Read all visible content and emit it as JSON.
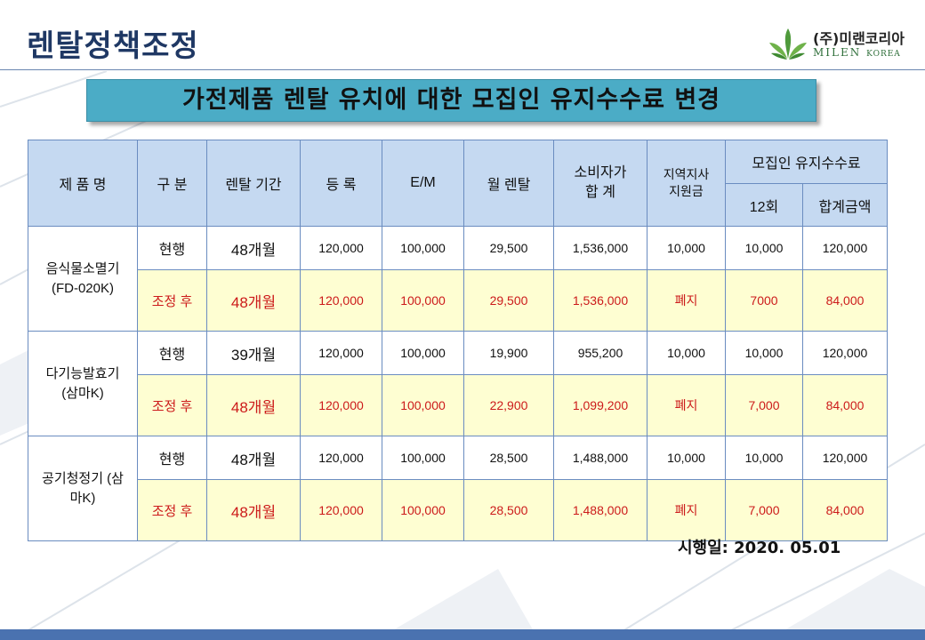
{
  "page_title": "렌탈정책조정",
  "logo": {
    "kr": "(주)미랜코리아",
    "en_main": "MILEN",
    "en_sub": "KOREA"
  },
  "banner": "가전제품 렌탈 유치에 대한 모집인 유지수수료 변경",
  "table": {
    "headers": {
      "product": "제 품 명",
      "kind": "구 분",
      "period": "렌탈 기간",
      "register": "등  록",
      "em": "E/M",
      "monthly": "월 렌탈",
      "total": "소비자가 합 계",
      "regional": "지역지사 지원금",
      "commission": "모집인 유지수수료",
      "count12": "12회",
      "sum": "합계금액"
    },
    "products": [
      {
        "name": "음식물소멸기 (FD-020K)",
        "rows": [
          [
            "현행",
            "48개월",
            "120,000",
            "100,000",
            "29,500",
            "1,536,000",
            "10,000",
            "10,000",
            "120,000"
          ],
          [
            "조정 후",
            "48개월",
            "120,000",
            "100,000",
            "29,500",
            "1,536,000",
            "폐지",
            "7000",
            "84,000"
          ]
        ]
      },
      {
        "name": "다기능발효기 (삼마K)",
        "rows": [
          [
            "현행",
            "39개월",
            "120,000",
            "100,000",
            "19,900",
            "955,200",
            "10,000",
            "10,000",
            "120,000"
          ],
          [
            "조정 후",
            "48개월",
            "120,000",
            "100,000",
            "22,900",
            "1,099,200",
            "폐지",
            "7,000",
            "84,000"
          ]
        ]
      },
      {
        "name": "공기청정기 (삼마K)",
        "rows": [
          [
            "현행",
            "48개월",
            "120,000",
            "100,000",
            "28,500",
            "1,488,000",
            "10,000",
            "10,000",
            "120,000"
          ],
          [
            "조정 후",
            "48개월",
            "120,000",
            "100,000",
            "28,500",
            "1,488,000",
            "폐지",
            "7,000",
            "84,000"
          ]
        ]
      }
    ]
  },
  "effective_date": "시행일: 2020. 05.01",
  "colors": {
    "title": "#1f3864",
    "banner": "#4bacc6",
    "header_fill": "#c5d9f1",
    "adjusted_fill": "#fefed2",
    "adjusted_text": "#cc1a1a",
    "bottom_bar": "#4a72b0"
  }
}
